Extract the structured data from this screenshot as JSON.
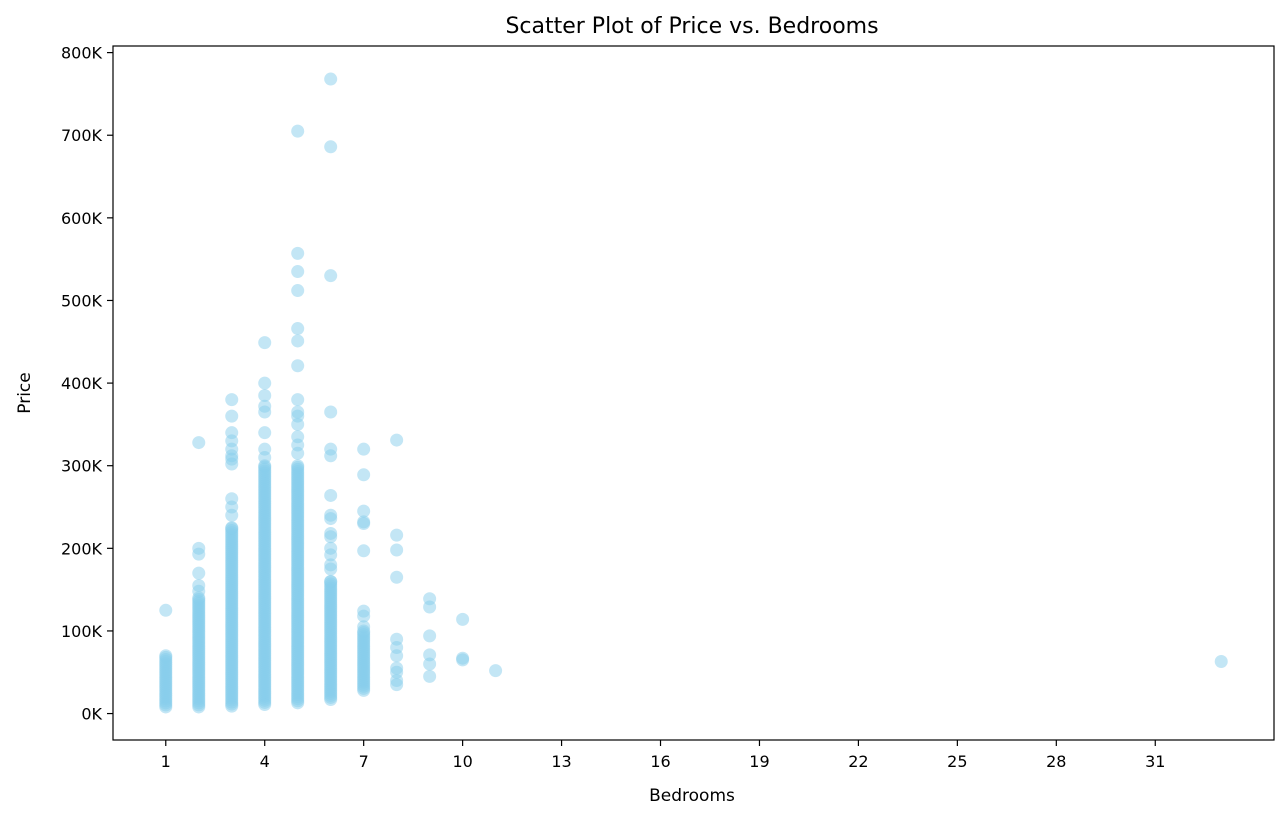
{
  "chart_data": {
    "type": "scatter",
    "title": "Scatter Plot of Price vs. Bedrooms",
    "xlabel": "Bedrooms",
    "ylabel": "Price",
    "xlim": [
      -0.6,
      34.6
    ],
    "ylim": [
      -32000,
      808000
    ],
    "x_ticks": [
      1,
      4,
      7,
      10,
      13,
      16,
      19,
      22,
      25,
      28,
      31
    ],
    "x_tick_labels": [
      "1",
      "4",
      "7",
      "10",
      "13",
      "16",
      "19",
      "22",
      "25",
      "28",
      "31"
    ],
    "y_ticks": [
      0,
      100000,
      200000,
      300000,
      400000,
      500000,
      600000,
      700000,
      800000
    ],
    "y_tick_labels": [
      "0K",
      "100K",
      "200K",
      "300K",
      "400K",
      "500K",
      "600K",
      "700K",
      "800K"
    ],
    "grid": false,
    "marker_color": "#87ceeb",
    "marker_alpha": 0.5,
    "dense_ranges": [
      {
        "x": 1,
        "y_min": 8000,
        "y_max": 70000
      },
      {
        "x": 2,
        "y_min": 8000,
        "y_max": 140000
      },
      {
        "x": 3,
        "y_min": 9000,
        "y_max": 225000
      },
      {
        "x": 4,
        "y_min": 11000,
        "y_max": 300000
      },
      {
        "x": 5,
        "y_min": 13000,
        "y_max": 300000
      },
      {
        "x": 6,
        "y_min": 17000,
        "y_max": 160000
      },
      {
        "x": 7,
        "y_min": 28000,
        "y_max": 100000
      }
    ],
    "points": [
      {
        "x": 1,
        "y": 125000
      },
      {
        "x": 2,
        "y": 328000
      },
      {
        "x": 2,
        "y": 200000
      },
      {
        "x": 2,
        "y": 193000
      },
      {
        "x": 2,
        "y": 170000
      },
      {
        "x": 2,
        "y": 155000
      },
      {
        "x": 2,
        "y": 148000
      },
      {
        "x": 3,
        "y": 380000
      },
      {
        "x": 3,
        "y": 360000
      },
      {
        "x": 3,
        "y": 340000
      },
      {
        "x": 3,
        "y": 330000
      },
      {
        "x": 3,
        "y": 320000
      },
      {
        "x": 3,
        "y": 312000
      },
      {
        "x": 3,
        "y": 308000
      },
      {
        "x": 3,
        "y": 302000
      },
      {
        "x": 3,
        "y": 260000
      },
      {
        "x": 3,
        "y": 250000
      },
      {
        "x": 3,
        "y": 240000
      },
      {
        "x": 4,
        "y": 449000
      },
      {
        "x": 4,
        "y": 400000
      },
      {
        "x": 4,
        "y": 385000
      },
      {
        "x": 4,
        "y": 372000
      },
      {
        "x": 4,
        "y": 365000
      },
      {
        "x": 4,
        "y": 340000
      },
      {
        "x": 4,
        "y": 320000
      },
      {
        "x": 4,
        "y": 310000
      },
      {
        "x": 5,
        "y": 705000
      },
      {
        "x": 5,
        "y": 557000
      },
      {
        "x": 5,
        "y": 535000
      },
      {
        "x": 5,
        "y": 512000
      },
      {
        "x": 5,
        "y": 466000
      },
      {
        "x": 5,
        "y": 451000
      },
      {
        "x": 5,
        "y": 421000
      },
      {
        "x": 5,
        "y": 380000
      },
      {
        "x": 5,
        "y": 365000
      },
      {
        "x": 5,
        "y": 360000
      },
      {
        "x": 5,
        "y": 350000
      },
      {
        "x": 5,
        "y": 335000
      },
      {
        "x": 5,
        "y": 325000
      },
      {
        "x": 5,
        "y": 315000
      },
      {
        "x": 6,
        "y": 768000
      },
      {
        "x": 6,
        "y": 686000
      },
      {
        "x": 6,
        "y": 530000
      },
      {
        "x": 6,
        "y": 365000
      },
      {
        "x": 6,
        "y": 320000
      },
      {
        "x": 6,
        "y": 312000
      },
      {
        "x": 6,
        "y": 264000
      },
      {
        "x": 6,
        "y": 240000
      },
      {
        "x": 6,
        "y": 236000
      },
      {
        "x": 6,
        "y": 218000
      },
      {
        "x": 6,
        "y": 214000
      },
      {
        "x": 6,
        "y": 200000
      },
      {
        "x": 6,
        "y": 192000
      },
      {
        "x": 6,
        "y": 180000
      },
      {
        "x": 6,
        "y": 175000
      },
      {
        "x": 7,
        "y": 320000
      },
      {
        "x": 7,
        "y": 289000
      },
      {
        "x": 7,
        "y": 245000
      },
      {
        "x": 7,
        "y": 232000
      },
      {
        "x": 7,
        "y": 230000
      },
      {
        "x": 7,
        "y": 197000
      },
      {
        "x": 7,
        "y": 124000
      },
      {
        "x": 7,
        "y": 118000
      },
      {
        "x": 7,
        "y": 105000
      },
      {
        "x": 8,
        "y": 331000
      },
      {
        "x": 8,
        "y": 216000
      },
      {
        "x": 8,
        "y": 198000
      },
      {
        "x": 8,
        "y": 165000
      },
      {
        "x": 8,
        "y": 90000
      },
      {
        "x": 8,
        "y": 80000
      },
      {
        "x": 8,
        "y": 70000
      },
      {
        "x": 8,
        "y": 55000
      },
      {
        "x": 8,
        "y": 50000
      },
      {
        "x": 8,
        "y": 40000
      },
      {
        "x": 8,
        "y": 35000
      },
      {
        "x": 9,
        "y": 139000
      },
      {
        "x": 9,
        "y": 129000
      },
      {
        "x": 9,
        "y": 94000
      },
      {
        "x": 9,
        "y": 71000
      },
      {
        "x": 9,
        "y": 60000
      },
      {
        "x": 9,
        "y": 45000
      },
      {
        "x": 10,
        "y": 114000
      },
      {
        "x": 10,
        "y": 67000
      },
      {
        "x": 10,
        "y": 65000
      },
      {
        "x": 11,
        "y": 52000
      },
      {
        "x": 33,
        "y": 63000
      }
    ]
  }
}
